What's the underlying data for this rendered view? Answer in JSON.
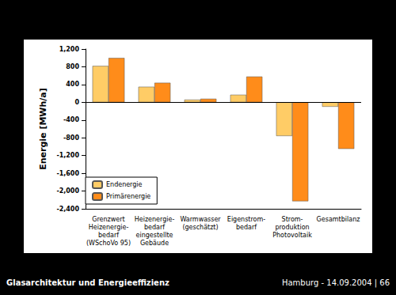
{
  "chart_data": {
    "type": "bar",
    "y_label": "Energie [MWh/a]",
    "categories": [
      "Grenzwert\nHeizenergie-\nbedarf\n(WSchoVo 95)",
      "Heizenergie-\nbedarf\neingestellte\nGebäude",
      "Warmwasser\n(geschätzt)",
      "Eigenstrom-\nbedarf",
      "Strom-\nproduktion\nPhotovoltaik",
      "Gesamtbilanz"
    ],
    "series": [
      {
        "name": "Endenergie",
        "color": "#ffcc66",
        "values": [
          820,
          350,
          60,
          170,
          -760,
          -100
        ]
      },
      {
        "name": "Primärenergie",
        "color": "#ff8c1a",
        "values": [
          1000,
          440,
          80,
          580,
          -2230,
          -1050
        ]
      }
    ],
    "ylim": [
      -2400,
      1200
    ],
    "yticks": [
      -2400,
      -2000,
      -1600,
      -1200,
      -800,
      -400,
      0,
      400,
      800,
      1200
    ],
    "grid": false,
    "legend": "lower left"
  },
  "footer": {
    "left": "Glasarchitektur und Energieeffizienz",
    "right": "Hamburg - 14.09.2004 | 66"
  }
}
